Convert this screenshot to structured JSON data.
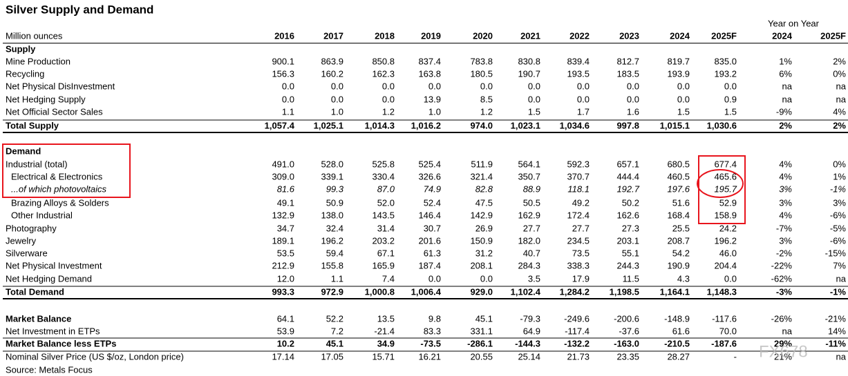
{
  "title": "Silver Supply and Demand",
  "group_header": "Year on Year",
  "columns": [
    "Million ounces",
    "2016",
    "2017",
    "2018",
    "2019",
    "2020",
    "2021",
    "2022",
    "2023",
    "2024",
    "2025F",
    "2024",
    "2025F"
  ],
  "rows": [
    {
      "label": "Supply"
    },
    {
      "label": "Mine Production",
      "values": [
        "900.1",
        "863.9",
        "850.8",
        "837.4",
        "783.8",
        "830.8",
        "839.4",
        "812.7",
        "819.7",
        "835.0",
        "1%",
        "2%"
      ]
    },
    {
      "label": "Recycling",
      "values": [
        "156.3",
        "160.2",
        "162.3",
        "163.8",
        "180.5",
        "190.7",
        "193.5",
        "183.5",
        "193.9",
        "193.2",
        "6%",
        "0%"
      ]
    },
    {
      "label": "Net Physical DisInvestment",
      "values": [
        "0.0",
        "0.0",
        "0.0",
        "0.0",
        "0.0",
        "0.0",
        "0.0",
        "0.0",
        "0.0",
        "0.0",
        "na",
        "na"
      ]
    },
    {
      "label": "Net Hedging Supply",
      "values": [
        "0.0",
        "0.0",
        "0.0",
        "13.9",
        "8.5",
        "0.0",
        "0.0",
        "0.0",
        "0.0",
        "0.9",
        "na",
        "na"
      ]
    },
    {
      "label": "Net Official Sector Sales",
      "values": [
        "1.1",
        "1.0",
        "1.2",
        "1.0",
        "1.2",
        "1.5",
        "1.7",
        "1.6",
        "1.5",
        "1.5",
        "-9%",
        "4%"
      ]
    },
    {
      "label": "Total Supply",
      "values": [
        "1,057.4",
        "1,025.1",
        "1,014.3",
        "1,016.2",
        "974.0",
        "1,023.1",
        "1,034.6",
        "997.8",
        "1,015.1",
        "1,030.6",
        "2%",
        "2%"
      ]
    },
    {
      "label": "Demand"
    },
    {
      "label": "Industrial (total)",
      "values": [
        "491.0",
        "528.0",
        "525.8",
        "525.4",
        "511.9",
        "564.1",
        "592.3",
        "657.1",
        "680.5",
        "677.4",
        "4%",
        "0%"
      ]
    },
    {
      "label": "Electrical & Electronics",
      "values": [
        "309.0",
        "339.1",
        "330.4",
        "326.6",
        "321.4",
        "350.7",
        "370.7",
        "444.4",
        "460.5",
        "465.6",
        "4%",
        "1%"
      ]
    },
    {
      "label": "...of which photovoltaics",
      "values": [
        "81.6",
        "99.3",
        "87.0",
        "74.9",
        "82.8",
        "88.9",
        "118.1",
        "192.7",
        "197.6",
        "195.7",
        "3%",
        "-1%"
      ]
    },
    {
      "label": "Brazing Alloys & Solders",
      "values": [
        "49.1",
        "50.9",
        "52.0",
        "52.4",
        "47.5",
        "50.5",
        "49.2",
        "50.2",
        "51.6",
        "52.9",
        "3%",
        "3%"
      ]
    },
    {
      "label": "Other Industrial",
      "values": [
        "132.9",
        "138.0",
        "143.5",
        "146.4",
        "142.9",
        "162.9",
        "172.4",
        "162.6",
        "168.4",
        "158.9",
        "4%",
        "-6%"
      ]
    },
    {
      "label": "Photography",
      "values": [
        "34.7",
        "32.4",
        "31.4",
        "30.7",
        "26.9",
        "27.7",
        "27.7",
        "27.3",
        "25.5",
        "24.2",
        "-7%",
        "-5%"
      ]
    },
    {
      "label": "Jewelry",
      "values": [
        "189.1",
        "196.2",
        "203.2",
        "201.6",
        "150.9",
        "182.0",
        "234.5",
        "203.1",
        "208.7",
        "196.2",
        "3%",
        "-6%"
      ]
    },
    {
      "label": "Silverware",
      "values": [
        "53.5",
        "59.4",
        "67.1",
        "61.3",
        "31.2",
        "40.7",
        "73.5",
        "55.1",
        "54.2",
        "46.0",
        "-2%",
        "-15%"
      ]
    },
    {
      "label": "Net Physical Investment",
      "values": [
        "212.9",
        "155.8",
        "165.9",
        "187.4",
        "208.1",
        "284.3",
        "338.3",
        "244.3",
        "190.9",
        "204.4",
        "-22%",
        "7%"
      ]
    },
    {
      "label": "Net Hedging Demand",
      "values": [
        "12.0",
        "1.1",
        "7.4",
        "0.0",
        "0.0",
        "3.5",
        "17.9",
        "11.5",
        "4.3",
        "0.0",
        "-62%",
        "na"
      ]
    },
    {
      "label": "Total Demand",
      "values": [
        "993.3",
        "972.9",
        "1,000.8",
        "1,006.4",
        "929.0",
        "1,102.4",
        "1,284.2",
        "1,198.5",
        "1,164.1",
        "1,148.3",
        "-3%",
        "-1%"
      ]
    },
    {
      "label": "Market Balance",
      "values": [
        "64.1",
        "52.2",
        "13.5",
        "9.8",
        "45.1",
        "-79.3",
        "-249.6",
        "-200.6",
        "-148.9",
        "-117.6",
        "-26%",
        "-21%"
      ]
    },
    {
      "label": "Net Investment in ETPs",
      "values": [
        "53.9",
        "7.2",
        "-21.4",
        "83.3",
        "331.1",
        "64.9",
        "-117.4",
        "-37.6",
        "61.6",
        "70.0",
        "na",
        "14%"
      ]
    },
    {
      "label": "Market Balance less ETPs",
      "values": [
        "10.2",
        "45.1",
        "34.9",
        "-73.5",
        "-286.1",
        "-144.3",
        "-132.2",
        "-163.0",
        "-210.5",
        "-187.6",
        "29%",
        "-11%"
      ]
    },
    {
      "label": "Nominal Silver Price (US $/oz, London price)",
      "values": [
        "17.14",
        "17.05",
        "15.71",
        "16.21",
        "20.55",
        "25.14",
        "21.73",
        "23.35",
        "28.27",
        "-",
        "21%",
        "na"
      ]
    }
  ],
  "source": "Source: Metals Focus",
  "watermark": "FX678"
}
